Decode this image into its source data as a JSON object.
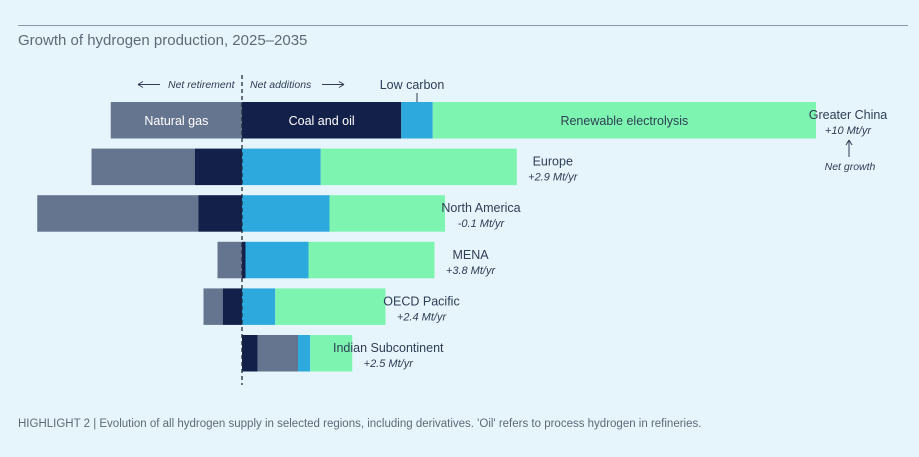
{
  "chart_data": {
    "type": "bar",
    "title": "Growth of hydrogen production, 2025–2035",
    "subtitle": "",
    "caption": "HIGHLIGHT 2 | Evolution of all hydrogen supply in selected regions, including derivatives. 'Oil' refers to process hydrogen in refineries.",
    "legend": {
      "natural_gas": "Natural gas",
      "coal_oil": "Coal and oil",
      "low_carbon": "Low carbon",
      "renewable": "Renewable electrolysis"
    },
    "annotations": {
      "net_retirement": "Net retirement",
      "net_additions": "Net additions",
      "net_growth": "Net growth"
    },
    "colors": {
      "natural_gas": "#66758f",
      "coal_oil": "#13214a",
      "low_carbon": "#2ea9de",
      "renewable": "#7df5b0",
      "background": "#e6f4fb"
    },
    "regions": [
      {
        "name": "Greater China",
        "growth": "+10 Mt/yr",
        "segments": [
          {
            "series": "natural_gas",
            "start": -7.5,
            "end": 0
          },
          {
            "series": "coal_oil",
            "start": 0,
            "end": 9.1
          },
          {
            "series": "low_carbon",
            "start": 9.1,
            "end": 10.9
          },
          {
            "series": "renewable",
            "start": 10.9,
            "end": 32.8
          }
        ]
      },
      {
        "name": "Europe",
        "growth": "+2.9 Mt/yr",
        "segments": [
          {
            "series": "natural_gas",
            "start": -8.6,
            "end": -2.7
          },
          {
            "series": "coal_oil",
            "start": -2.7,
            "end": 0
          },
          {
            "series": "low_carbon",
            "start": 0,
            "end": 4.5
          },
          {
            "series": "renewable",
            "start": 4.5,
            "end": 15.7
          }
        ]
      },
      {
        "name": "North America",
        "growth": "-0.1 Mt/yr",
        "segments": [
          {
            "series": "natural_gas",
            "start": -11.7,
            "end": -2.5
          },
          {
            "series": "coal_oil",
            "start": -2.5,
            "end": 0
          },
          {
            "series": "low_carbon",
            "start": 0,
            "end": 5.0
          },
          {
            "series": "renewable",
            "start": 5.0,
            "end": 11.6
          }
        ]
      },
      {
        "name": "MENA",
        "growth": "+3.8 Mt/yr",
        "segments": [
          {
            "series": "natural_gas",
            "start": -1.4,
            "end": 0
          },
          {
            "series": "coal_oil",
            "start": 0,
            "end": 0.2
          },
          {
            "series": "low_carbon",
            "start": 0.2,
            "end": 3.8
          },
          {
            "series": "renewable",
            "start": 3.8,
            "end": 11.0
          }
        ]
      },
      {
        "name": "OECD Pacific",
        "growth": "+2.4 Mt/yr",
        "segments": [
          {
            "series": "natural_gas",
            "start": -2.2,
            "end": -1.1
          },
          {
            "series": "coal_oil",
            "start": -1.1,
            "end": 0
          },
          {
            "series": "low_carbon",
            "start": 0,
            "end": 1.9
          },
          {
            "series": "renewable",
            "start": 1.9,
            "end": 8.2
          }
        ]
      },
      {
        "name": "Indian Subcontinent",
        "growth": "+2.5 Mt/yr",
        "segments": [
          {
            "series": "coal_oil",
            "start": 0,
            "end": 0.9
          },
          {
            "series": "natural_gas",
            "start": 0.9,
            "end": 3.2
          },
          {
            "series": "low_carbon",
            "start": 3.2,
            "end": 3.9
          },
          {
            "series": "renewable",
            "start": 3.9,
            "end": 6.3
          }
        ]
      }
    ]
  }
}
